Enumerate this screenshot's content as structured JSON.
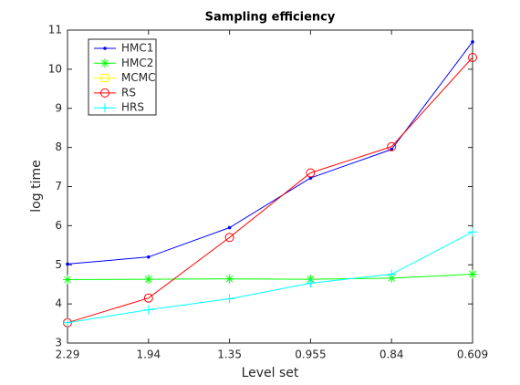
{
  "chart_data": {
    "type": "line",
    "title": "Sampling efficiency",
    "xlabel": "Level set",
    "ylabel": "log time",
    "categories": [
      "2.29",
      "1.94",
      "1.35",
      "0.955",
      "0.84",
      "0.609"
    ],
    "series": [
      {
        "name": "HMC1",
        "color": "#0000ff",
        "marker": "dot",
        "values": [
          5.02,
          5.2,
          5.95,
          7.22,
          7.95,
          10.7
        ]
      },
      {
        "name": "HMC2",
        "color": "#00ff00",
        "marker": "asterisk",
        "values": [
          4.62,
          4.63,
          4.64,
          4.63,
          4.66,
          4.76
        ]
      },
      {
        "name": "MCMC",
        "color": "#ffff00",
        "marker": "square",
        "values": [
          null,
          null,
          null,
          null,
          null,
          null
        ]
      },
      {
        "name": "RS",
        "color": "#ff0000",
        "marker": "circle",
        "values": [
          3.52,
          4.15,
          5.7,
          7.35,
          8.02,
          10.3
        ]
      },
      {
        "name": "HRS",
        "color": "#00ffff",
        "marker": "plus",
        "values": [
          3.52,
          3.85,
          4.13,
          4.53,
          4.76,
          5.84
        ]
      }
    ],
    "ylim": [
      3,
      11
    ],
    "yticks": [
      3,
      4,
      5,
      6,
      7,
      8,
      9,
      10,
      11
    ],
    "legend": "upper left"
  }
}
